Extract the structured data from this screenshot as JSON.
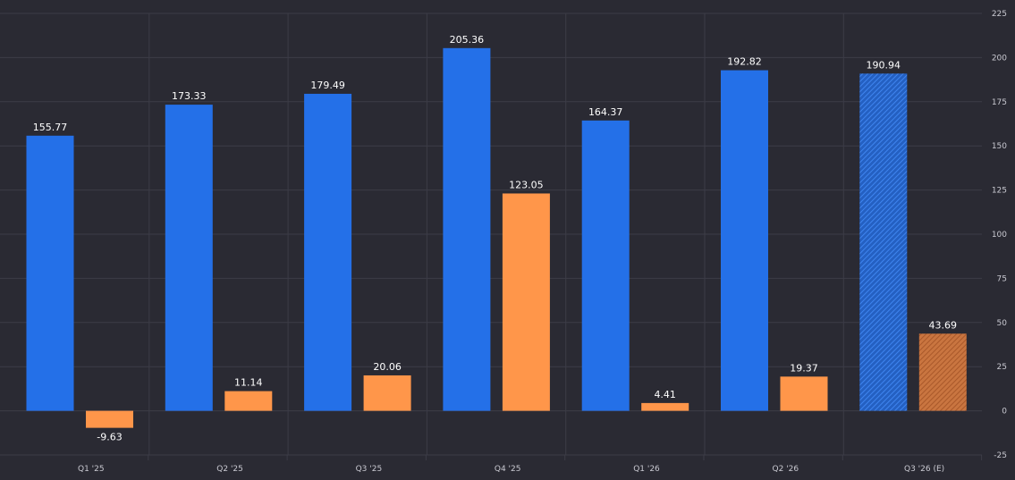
{
  "colors": {
    "background": "#2a2a33",
    "grid": "#3c3c47",
    "primary": "#2470e8",
    "secondary": "#ff964a",
    "text": "#ffffff",
    "tick": "#c9c9d1"
  },
  "chart_data": {
    "type": "bar",
    "categories": [
      "Q1 '25",
      "Q2 '25",
      "Q3 '25",
      "Q4 '25",
      "Q1 '26",
      "Q2 '26",
      "Q3 '26 (E)"
    ],
    "series": [
      {
        "color": "#2470e8",
        "values": [
          155.77,
          173.33,
          179.49,
          205.36,
          164.37,
          192.82,
          190.94
        ]
      },
      {
        "color": "#ff964a",
        "values": [
          -9.63,
          11.14,
          20.06,
          123.05,
          4.41,
          19.37,
          43.69
        ]
      }
    ],
    "value_labels": [
      [
        "155.77",
        "173.33",
        "179.49",
        "205.36",
        "164.37",
        "192.82",
        "190.94"
      ],
      [
        "-9.63",
        "11.14",
        "20.06",
        "123.05",
        "4.41",
        "19.37",
        "43.69"
      ]
    ],
    "estimated_category": "Q3 '26 (E)",
    "ylim": [
      -25,
      225
    ],
    "yticks": [
      "-25",
      "0",
      "25",
      "50",
      "75",
      "100",
      "125",
      "150",
      "175",
      "200",
      "225"
    ],
    "yaxis_position": "right",
    "grid": true,
    "legend": "none",
    "title": "",
    "xlabel": "",
    "ylabel": ""
  }
}
